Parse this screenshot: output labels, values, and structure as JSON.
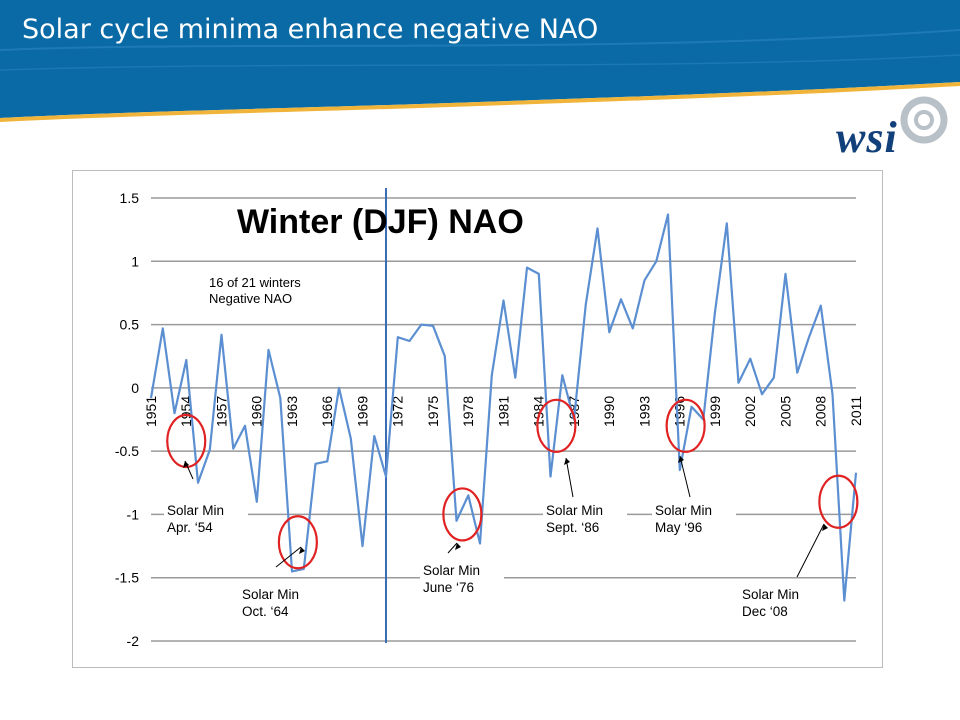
{
  "slide": {
    "title": "Solar cycle minima enhance negative NAO",
    "logo_text": "wsi",
    "colors": {
      "banner": "#0a6aa5",
      "banner_stripe": "#f0b43a",
      "logo": "#12407a"
    }
  },
  "chart_data": {
    "type": "line",
    "title": "Winter (DJF) NAO",
    "xlabel": "",
    "ylabel": "",
    "ylim": [
      -2,
      1.5
    ],
    "yticks": [
      "1.5",
      "1",
      "0.5",
      "0",
      "-0.5",
      "-1",
      "-1.5",
      "-2"
    ],
    "xticks": [
      "1951",
      "1954",
      "1957",
      "1960",
      "1963",
      "1966",
      "1969",
      "1972",
      "1975",
      "1978",
      "1981",
      "1984",
      "1987",
      "1990",
      "1993",
      "1996",
      "1999",
      "2002",
      "2005",
      "2008",
      "2011"
    ],
    "x": [
      1951,
      1952,
      1953,
      1954,
      1955,
      1956,
      1957,
      1958,
      1959,
      1960,
      1961,
      1962,
      1963,
      1964,
      1965,
      1966,
      1967,
      1968,
      1969,
      1970,
      1971,
      1972,
      1973,
      1974,
      1975,
      1976,
      1977,
      1978,
      1979,
      1980,
      1981,
      1982,
      1983,
      1984,
      1985,
      1986,
      1987,
      1988,
      1989,
      1990,
      1991,
      1992,
      1993,
      1994,
      1995,
      1996,
      1997,
      1998,
      1999,
      2000,
      2001,
      2002,
      2003,
      2004,
      2005,
      2006,
      2007,
      2008,
      2009,
      2010,
      2011
    ],
    "series": [
      {
        "values": [
          -0.08,
          0.47,
          -0.2,
          0.22,
          -0.75,
          -0.49,
          0.42,
          -0.48,
          -0.3,
          -0.9,
          0.3,
          -0.08,
          -1.45,
          -1.43,
          -0.6,
          -0.58,
          0.0,
          -0.4,
          -1.25,
          -0.38,
          -0.7,
          0.4,
          0.37,
          0.5,
          0.49,
          0.25,
          -1.05,
          -0.85,
          -1.23,
          0.1,
          0.69,
          0.08,
          0.95,
          0.9,
          -0.7,
          0.1,
          -0.25,
          0.66,
          1.26,
          0.44,
          0.7,
          0.47,
          0.85,
          1.0,
          1.37,
          -0.65,
          -0.15,
          -0.25,
          0.6,
          1.3,
          0.04,
          0.23,
          -0.05,
          0.08,
          0.9,
          0.12,
          0.4,
          0.65,
          -0.05,
          -1.68,
          -0.67
        ]
      }
    ],
    "color": "#5b8fd1",
    "grid": true,
    "vertical_marker_x": 1971,
    "annotation": "16 of 21 winters\nNegative NAO",
    "solar_minima": [
      {
        "label": "Solar Min\nApr. ‘54",
        "x": 1954,
        "y": -0.42
      },
      {
        "label": "Solar Min\nOct. ‘64",
        "x": 1963.5,
        "y": -1.22
      },
      {
        "label": "Solar Min\nJune ‘76",
        "x": 1977.5,
        "y": -1.0
      },
      {
        "label": "Solar Min\nSept. ‘86",
        "x": 1985.5,
        "y": -0.3
      },
      {
        "label": "Solar Min\nMay ‘96",
        "x": 1996.5,
        "y": -0.3
      },
      {
        "label": "Solar Min\nDec ‘08",
        "x": 2009.5,
        "y": -0.9
      }
    ],
    "marker_color": "#e02222"
  }
}
